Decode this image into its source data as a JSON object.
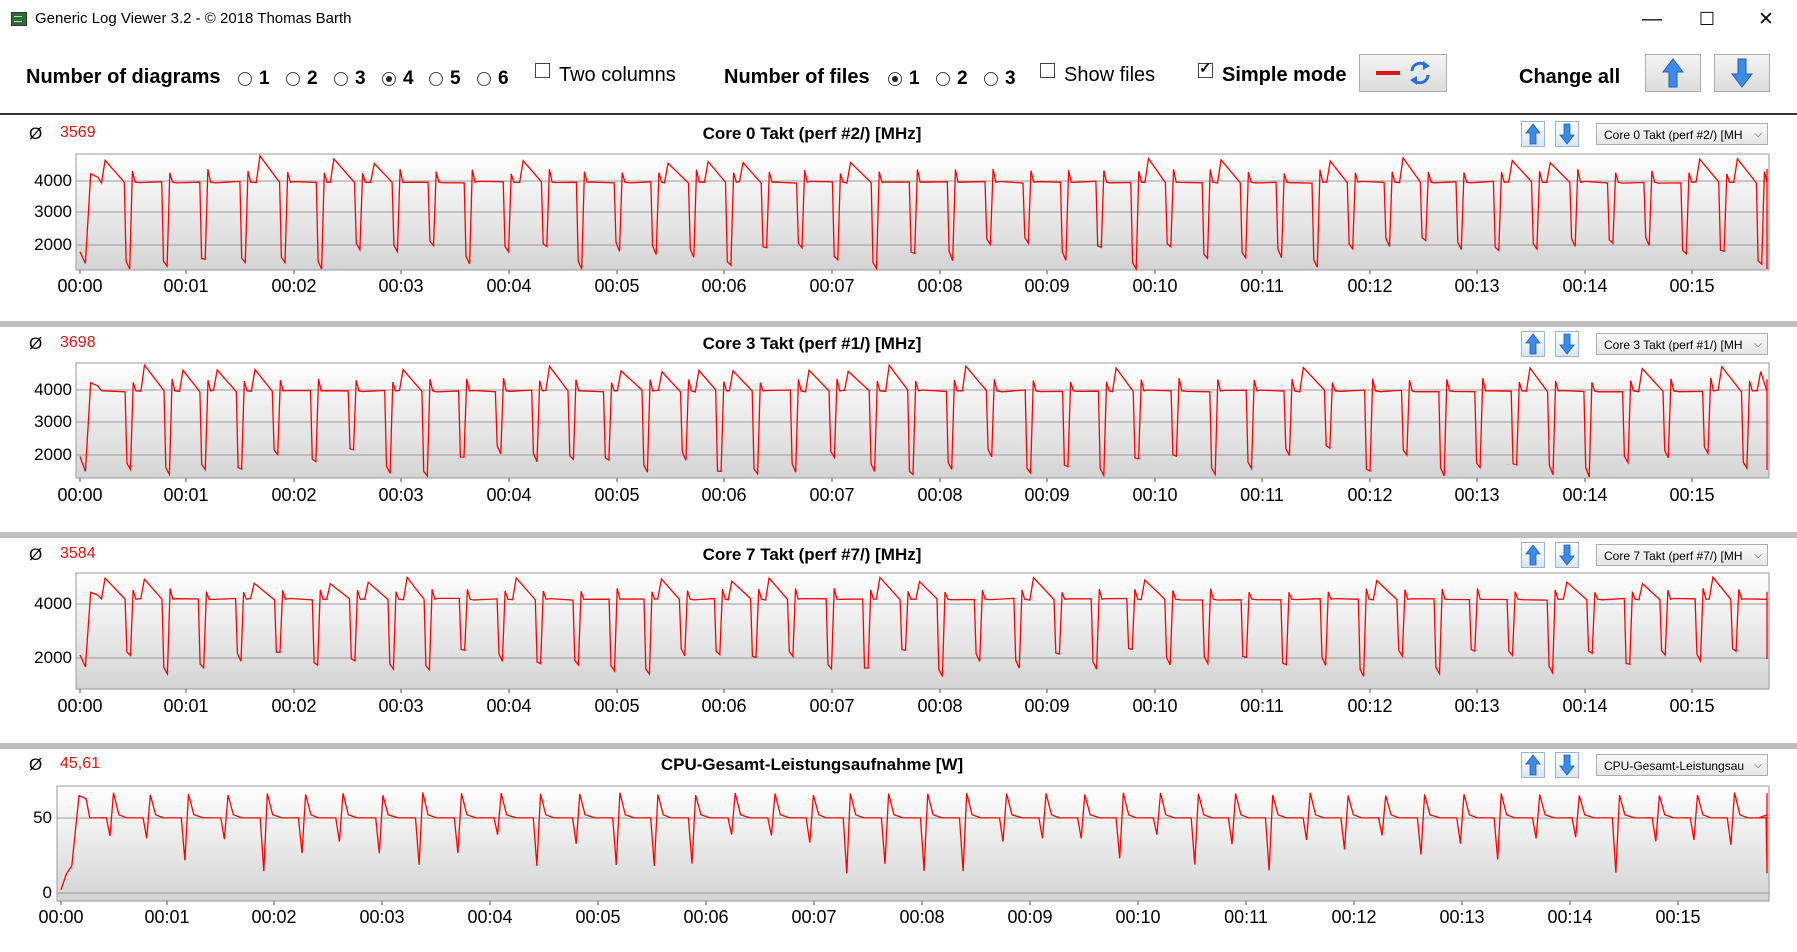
{
  "window": {
    "title": "Generic Log Viewer 3.2 - © 2018 Thomas Barth",
    "minimize": "—",
    "maximize": "☐",
    "close": "✕"
  },
  "toolbar": {
    "num_diagrams_label": "Number of diagrams",
    "diagram_options": [
      "1",
      "2",
      "3",
      "4",
      "5",
      "6"
    ],
    "diagrams_selected": "4",
    "two_columns_label": "Two columns",
    "two_columns_checked": false,
    "num_files_label": "Number of files",
    "file_options": [
      "1",
      "2",
      "3"
    ],
    "files_selected": "1",
    "show_files_label": "Show files",
    "show_files_checked": false,
    "simple_mode_label": "Simple mode",
    "simple_mode_checked": true,
    "change_all_label": "Change all"
  },
  "colors": {
    "series": "#ff0000",
    "grid": "#9a9a9a",
    "avg": "#e8120f"
  },
  "x_ticks": [
    "00:00",
    "00:01",
    "00:02",
    "00:03",
    "00:04",
    "00:05",
    "00:06",
    "00:07",
    "00:08",
    "00:09",
    "00:10",
    "00:11",
    "00:12",
    "00:13",
    "00:14",
    "00:15"
  ],
  "panels": [
    {
      "avg_symbol": "Ø",
      "avg": "3569",
      "title": "Core 0 Takt (perf #2/) [MHz]",
      "selector": "Core 0 Takt (perf #2/) [MH"
    },
    {
      "avg_symbol": "Ø",
      "avg": "3698",
      "title": "Core 3 Takt (perf #1/) [MHz]",
      "selector": "Core 3 Takt (perf #1/) [MH"
    },
    {
      "avg_symbol": "Ø",
      "avg": "3584",
      "title": "Core 7 Takt (perf #7/) [MHz]",
      "selector": "Core 7 Takt (perf #7/) [MH"
    },
    {
      "avg_symbol": "Ø",
      "avg": "45,61",
      "title": "CPU-Gesamt-Leistungsaufnahme [W]",
      "selector": "CPU-Gesamt-Leistungsau"
    }
  ],
  "chart_data": [
    {
      "type": "line",
      "title": "Core 0 Takt (perf #2/) [MHz]",
      "x_range": [
        "00:00",
        "00:15:45"
      ],
      "ylim": [
        1300,
        4800
      ],
      "y_ticks": [
        2000,
        3000,
        4000
      ],
      "series": [
        {
          "values": "steady ~3950 with periodic drops to ~1500-2200 roughly every 20 s and spikes up to ~4700"
        }
      ]
    },
    {
      "type": "line",
      "title": "Core 3 Takt (perf #1/) [MHz]",
      "x_range": [
        "00:00",
        "00:15:45"
      ],
      "ylim": [
        1300,
        4800
      ],
      "y_ticks": [
        2000,
        3000,
        4000
      ],
      "series": [
        {
          "values": "steady ~3950 with periodic drops to ~1500-2000 and spikes up to ~4700"
        }
      ]
    },
    {
      "type": "line",
      "title": "Core 7 Takt (perf #7/) [MHz]",
      "x_range": [
        "00:00",
        "00:15:45"
      ],
      "ylim": [
        700,
        4900
      ],
      "y_ticks": [
        2000,
        4000
      ],
      "series": [
        {
          "values": "steady ~3950 with periodic drops to ~1400-2000 and spikes up to ~4800"
        }
      ]
    },
    {
      "type": "line",
      "title": "CPU-Gesamt-Leistungsaufnahme [W]",
      "x_range": [
        "00:00",
        "00:15:45"
      ],
      "ylim": [
        -2,
        70
      ],
      "y_ticks": [
        0,
        50
      ],
      "series": [
        {
          "values": "steady ~50 W with spikes to ~65 W and dips to ~15 W roughly every 20 s"
        }
      ]
    }
  ]
}
